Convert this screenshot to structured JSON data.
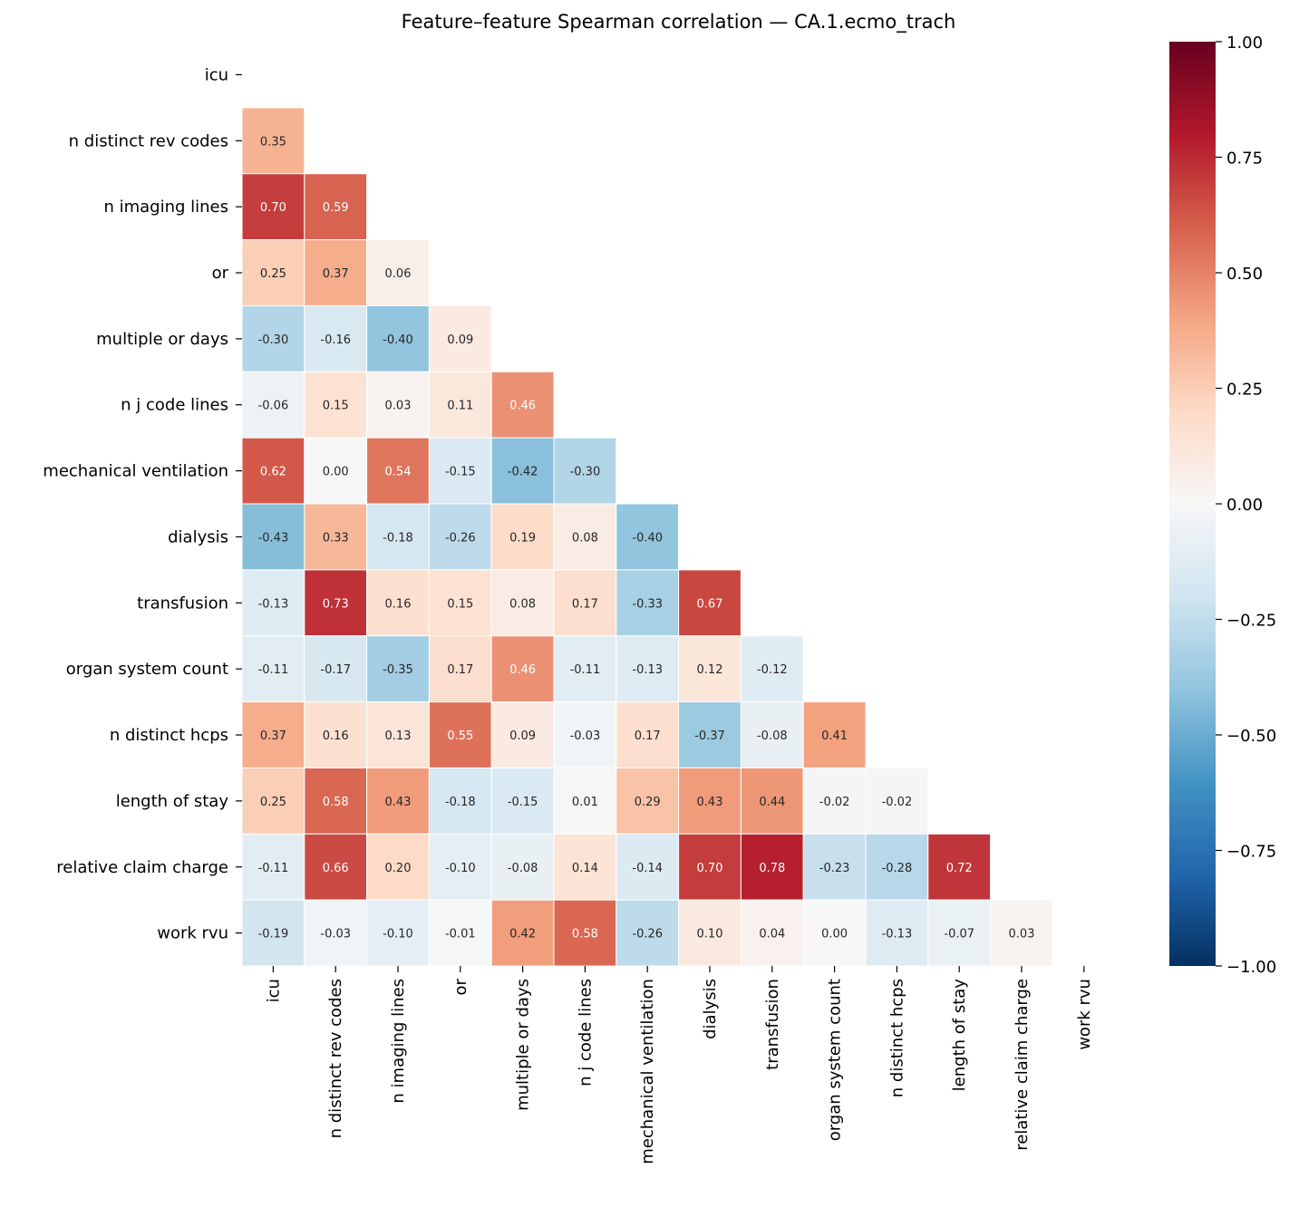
{
  "chart_data": {
    "type": "heatmap",
    "title": "Feature–feature Spearman correlation — CA.1.ecmo_trach",
    "labels": [
      "icu",
      "n distinct rev codes",
      "n imaging lines",
      "or",
      "multiple or days",
      "n j code lines",
      "mechanical ventilation",
      "dialysis",
      "transfusion",
      "organ system count",
      "n distinct hcps",
      "length of stay",
      "relative claim charge",
      "work rvu"
    ],
    "lower_triangle": [
      [],
      [
        0.35
      ],
      [
        0.7,
        0.59
      ],
      [
        0.25,
        0.37,
        0.06
      ],
      [
        -0.3,
        -0.16,
        -0.4,
        0.09
      ],
      [
        -0.06,
        0.15,
        0.03,
        0.11,
        0.46
      ],
      [
        0.62,
        0.0,
        0.54,
        -0.15,
        -0.42,
        -0.3
      ],
      [
        -0.43,
        0.33,
        -0.18,
        -0.26,
        0.19,
        0.08,
        -0.4
      ],
      [
        -0.13,
        0.73,
        0.16,
        0.15,
        0.08,
        0.17,
        -0.33,
        0.67
      ],
      [
        -0.11,
        -0.17,
        -0.35,
        0.17,
        0.46,
        -0.11,
        -0.13,
        0.12,
        -0.12
      ],
      [
        0.37,
        0.16,
        0.13,
        0.55,
        0.09,
        -0.03,
        0.17,
        -0.37,
        -0.08,
        0.41
      ],
      [
        0.25,
        0.58,
        0.43,
        -0.18,
        -0.15,
        0.01,
        0.29,
        0.43,
        0.44,
        -0.02,
        -0.02
      ],
      [
        -0.11,
        0.66,
        0.2,
        -0.1,
        -0.08,
        0.14,
        -0.14,
        0.7,
        0.78,
        -0.23,
        -0.28,
        0.72
      ],
      [
        -0.19,
        -0.03,
        -0.1,
        -0.01,
        0.42,
        0.58,
        -0.26,
        0.1,
        0.04,
        -0.0,
        -0.13,
        -0.07,
        0.03
      ]
    ],
    "value_format": "0.00",
    "colormap": "RdBu_r",
    "colormap_stops": [
      "#053061",
      "#2166ac",
      "#4393c3",
      "#92c5de",
      "#d1e5f0",
      "#f7f7f7",
      "#fddbc7",
      "#f4a582",
      "#d6604d",
      "#b2182b",
      "#67001f"
    ],
    "vlim": [
      -1,
      1
    ],
    "colorbar_ticks": [
      "1.00",
      "0.75",
      "0.50",
      "0.25",
      "0.00",
      "−0.25",
      "−0.50",
      "−0.75",
      "−1.00"
    ],
    "colorbar_tick_values": [
      1,
      0.75,
      0.5,
      0.25,
      0,
      -0.25,
      -0.5,
      -0.75,
      -1
    ],
    "mask": "upper triangle including diagonal",
    "grid": false
  }
}
